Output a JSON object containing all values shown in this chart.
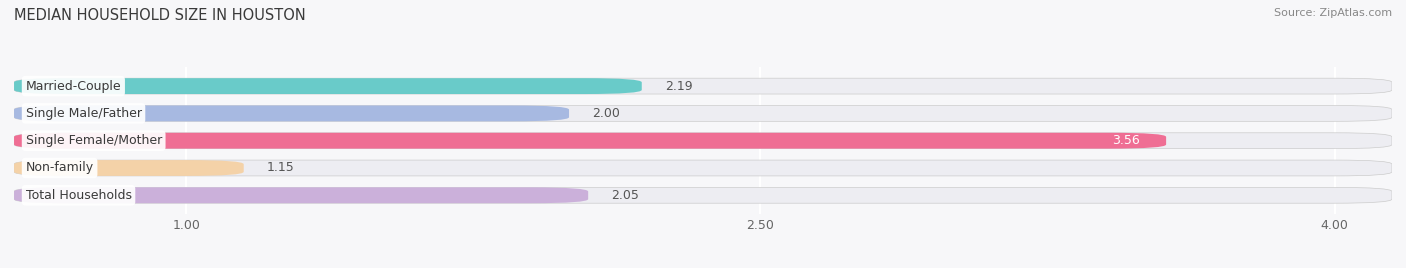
{
  "title": "MEDIAN HOUSEHOLD SIZE IN HOUSTON",
  "source": "Source: ZipAtlas.com",
  "categories": [
    "Married-Couple",
    "Single Male/Father",
    "Single Female/Mother",
    "Non-family",
    "Total Households"
  ],
  "values": [
    2.19,
    2.0,
    3.56,
    1.15,
    2.05
  ],
  "bar_colors": [
    "#5bc8c5",
    "#a0b4e0",
    "#f0608a",
    "#f5cfa0",
    "#c8aad8"
  ],
  "bar_bg_color": "#ededf2",
  "value_inside": [
    false,
    false,
    true,
    false,
    false
  ],
  "xlim_left": 0.55,
  "xlim_right": 4.15,
  "xticks": [
    1.0,
    2.5,
    4.0
  ],
  "xtick_labels": [
    "1.00",
    "2.50",
    "4.00"
  ],
  "title_fontsize": 10.5,
  "label_fontsize": 9,
  "value_fontsize": 9,
  "source_fontsize": 8,
  "bar_height": 0.58,
  "bar_gap": 0.12,
  "background_color": "#f7f7f9"
}
